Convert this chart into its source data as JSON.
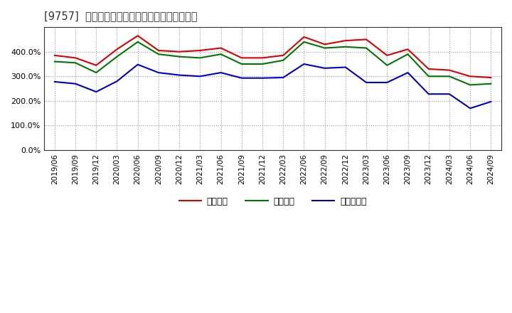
{
  "title": "[9757]  流動比率、当座比率、現預金比率の推移",
  "legend_labels": [
    "流動比率",
    "当座比率",
    "現預金比率"
  ],
  "line_colors": [
    "#dd0000",
    "#007700",
    "#0000cc"
  ],
  "dates": [
    "2019/06",
    "2019/09",
    "2019/12",
    "2020/03",
    "2020/06",
    "2020/09",
    "2020/12",
    "2021/03",
    "2021/06",
    "2021/09",
    "2021/12",
    "2022/03",
    "2022/06",
    "2022/09",
    "2022/12",
    "2023/03",
    "2023/06",
    "2023/09",
    "2023/12",
    "2024/03",
    "2024/06",
    "2024/09"
  ],
  "ryudo": [
    385,
    375,
    345,
    410,
    465,
    405,
    400,
    405,
    415,
    375,
    375,
    385,
    460,
    430,
    445,
    450,
    385,
    410,
    330,
    325,
    300,
    295
  ],
  "toza": [
    360,
    355,
    315,
    380,
    440,
    390,
    380,
    375,
    390,
    350,
    350,
    365,
    440,
    415,
    420,
    415,
    345,
    390,
    300,
    300,
    265,
    270
  ],
  "genyo": [
    278,
    270,
    237,
    280,
    348,
    315,
    305,
    300,
    315,
    293,
    293,
    295,
    350,
    333,
    337,
    275,
    275,
    315,
    228,
    228,
    170,
    197
  ],
  "ylim": [
    0,
    500
  ],
  "yticks": [
    0,
    100,
    200,
    300,
    400
  ],
  "grid_color": "#999999",
  "bg_color": "#ffffff",
  "plot_bg_color": "#ffffff"
}
